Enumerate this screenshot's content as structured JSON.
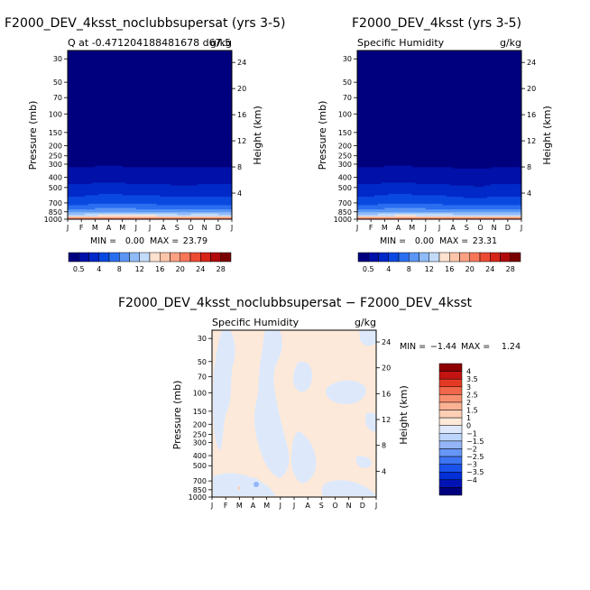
{
  "months": [
    "J",
    "F",
    "M",
    "A",
    "M",
    "J",
    "J",
    "A",
    "S",
    "O",
    "N",
    "D",
    "J"
  ],
  "pressure_ticks": [
    {
      "p": 30,
      "label": "30"
    },
    {
      "p": 50,
      "label": "50"
    },
    {
      "p": 70,
      "label": "70"
    },
    {
      "p": 100,
      "label": "100"
    },
    {
      "p": 150,
      "label": "150"
    },
    {
      "p": 200,
      "label": "200"
    },
    {
      "p": 250,
      "label": "250"
    },
    {
      "p": 300,
      "label": "300"
    },
    {
      "p": 400,
      "label": "400"
    },
    {
      "p": 500,
      "label": "500"
    },
    {
      "p": 700,
      "label": "700"
    },
    {
      "p": 850,
      "label": "850"
    },
    {
      "p": 1000,
      "label": "1000"
    }
  ],
  "height_ticks": [
    {
      "km": 4,
      "label": "4"
    },
    {
      "km": 8,
      "label": "8"
    },
    {
      "km": 12,
      "label": "12"
    },
    {
      "km": 16,
      "label": "16"
    },
    {
      "km": 20,
      "label": "20"
    },
    {
      "km": 24,
      "label": "24"
    }
  ],
  "axis": {
    "ylabel": "Pressure (mb)",
    "y2label": "Height (km)"
  },
  "abs_colors": [
    "#00007f",
    "#0011a8",
    "#0029c8",
    "#0a49e0",
    "#2a6ef0",
    "#5b96f5",
    "#8fbbf7",
    "#c3dbf9",
    "#fde2cf",
    "#fcc4a8",
    "#fba082",
    "#f7765a",
    "#ec4b33",
    "#d62416",
    "#b00a0a",
    "#7a0000"
  ],
  "abs_levels": [
    0.5,
    4,
    8,
    12,
    16,
    20,
    24,
    28
  ],
  "diff_colors": [
    "#00007f",
    "#0013b4",
    "#0030d6",
    "#1a52ec",
    "#3c75f4",
    "#6896f6",
    "#93b5f8",
    "#bcd5fa",
    "#dde9fb",
    "#fde9d9",
    "#fdd0b6",
    "#fbb194",
    "#f88f6f",
    "#f1674b",
    "#e43a24",
    "#c31412",
    "#8e0000"
  ],
  "diff_levels": [
    "4",
    "3.5",
    "3",
    "2.5",
    "2",
    "1.5",
    "1",
    "0",
    "-1",
    "-1.5",
    "-2",
    "-2.5",
    "-3",
    "-3.5",
    "-4"
  ],
  "chart_data": [
    {
      "type": "heatmap",
      "title": "F2000_DEV_4ksst_noclubbsupersat (yrs 3-5)",
      "subtitle_left": "Q at -0.471204188481678 d67.5",
      "subtitle_right": "g/kg",
      "xlabel": "",
      "ylabel": "Pressure (mb)",
      "y2label": "Height (km)",
      "ylim": [
        1000,
        25
      ],
      "y_scale": "log",
      "x": [
        "J",
        "F",
        "M",
        "A",
        "M",
        "J",
        "J",
        "A",
        "S",
        "O",
        "N",
        "D",
        "J"
      ],
      "min": "0.00",
      "max": "23.79",
      "min_label": "MIN =",
      "max_label": "MAX =",
      "field_pressure": [
        30,
        50,
        100,
        200,
        300,
        400,
        500,
        700,
        850,
        925,
        1000
      ],
      "field_gkg": [
        [
          0,
          0,
          0,
          0.02,
          0.3,
          1.1,
          2.4,
          5.2,
          9.0,
          13.5,
          23
        ],
        [
          0,
          0,
          0,
          0.02,
          0.3,
          1.1,
          2.4,
          5.2,
          9.0,
          13.5,
          23
        ],
        [
          0,
          0,
          0,
          0.02,
          0.35,
          1.2,
          2.6,
          5.5,
          9.3,
          13.8,
          23.2
        ],
        [
          0,
          0,
          0,
          0.02,
          0.4,
          1.3,
          2.8,
          5.8,
          9.6,
          14.0,
          23.5
        ],
        [
          0,
          0,
          0,
          0.02,
          0.35,
          1.2,
          2.6,
          5.6,
          9.5,
          14.0,
          23.5
        ],
        [
          0,
          0,
          0,
          0.02,
          0.3,
          1.1,
          2.5,
          5.4,
          9.4,
          13.9,
          23.6
        ],
        [
          0,
          0,
          0,
          0.02,
          0.3,
          1.1,
          2.5,
          5.4,
          9.4,
          13.9,
          23.7
        ],
        [
          0,
          0,
          0,
          0.02,
          0.3,
          1.1,
          2.4,
          5.2,
          9.2,
          13.8,
          23.7
        ],
        [
          0,
          0,
          0,
          0.02,
          0.3,
          1.05,
          2.3,
          5.0,
          9.0,
          13.6,
          23.6
        ],
        [
          0,
          0,
          0,
          0.02,
          0.3,
          1.05,
          2.3,
          5.0,
          9.0,
          13.6,
          23.6
        ],
        [
          0,
          0,
          0,
          0.02,
          0.3,
          1.1,
          2.4,
          5.2,
          9.1,
          13.7,
          23.5
        ],
        [
          0,
          0,
          0,
          0.02,
          0.3,
          1.1,
          2.4,
          5.2,
          9.0,
          13.6,
          23.3
        ],
        [
          0,
          0,
          0,
          0.02,
          0.3,
          1.1,
          2.4,
          5.2,
          9.0,
          13.5,
          23
        ]
      ]
    },
    {
      "type": "heatmap",
      "title": "F2000_DEV_4ksst (yrs 3-5)",
      "subtitle_left": "Specific Humidity",
      "subtitle_right": "g/kg",
      "xlabel": "",
      "ylabel": "Pressure (mb)",
      "y2label": "Height (km)",
      "ylim": [
        1000,
        25
      ],
      "y_scale": "log",
      "x": [
        "J",
        "F",
        "M",
        "A",
        "M",
        "J",
        "J",
        "A",
        "S",
        "O",
        "N",
        "D",
        "J"
      ],
      "min": "0.00",
      "max": "23.31",
      "min_label": "MIN =",
      "max_label": "MAX =",
      "field_pressure": [
        30,
        50,
        100,
        200,
        300,
        400,
        500,
        700,
        850,
        925,
        1000
      ],
      "field_gkg": [
        [
          0,
          0,
          0,
          0.02,
          0.3,
          1.1,
          2.4,
          5.2,
          9.0,
          13.4,
          22.8
        ],
        [
          0,
          0,
          0,
          0.02,
          0.3,
          1.1,
          2.4,
          5.2,
          9.0,
          13.4,
          22.8
        ],
        [
          0,
          0,
          0,
          0.02,
          0.35,
          1.2,
          2.6,
          5.5,
          9.3,
          13.7,
          23.0
        ],
        [
          0,
          0,
          0,
          0.02,
          0.4,
          1.3,
          2.8,
          5.8,
          9.6,
          13.9,
          23.2
        ],
        [
          0,
          0,
          0,
          0.02,
          0.35,
          1.2,
          2.6,
          5.6,
          9.5,
          13.9,
          23.2
        ],
        [
          0,
          0,
          0,
          0.02,
          0.3,
          1.1,
          2.5,
          5.4,
          9.4,
          13.8,
          23.3
        ],
        [
          0,
          0,
          0,
          0.02,
          0.3,
          1.1,
          2.5,
          5.4,
          9.4,
          13.8,
          23.3
        ],
        [
          0,
          0,
          0,
          0.02,
          0.28,
          1.05,
          2.3,
          5.1,
          9.1,
          13.6,
          23.2
        ],
        [
          0,
          0,
          0,
          0.02,
          0.25,
          1.0,
          2.2,
          4.9,
          8.9,
          13.4,
          23.1
        ],
        [
          0,
          0,
          0,
          0.02,
          0.22,
          0.95,
          2.1,
          4.8,
          8.8,
          13.3,
          23.0
        ],
        [
          0,
          0,
          0,
          0.02,
          0.3,
          1.1,
          2.4,
          5.2,
          9.0,
          13.5,
          23.0
        ],
        [
          0,
          0,
          0,
          0.02,
          0.3,
          1.1,
          2.4,
          5.2,
          9.0,
          13.4,
          22.9
        ],
        [
          0,
          0,
          0,
          0.02,
          0.3,
          1.1,
          2.4,
          5.2,
          9.0,
          13.4,
          22.8
        ]
      ]
    },
    {
      "type": "heatmap",
      "title": "F2000_DEV_4ksst_noclubbsupersat − F2000_DEV_4ksst",
      "subtitle_left": "Specific Humidity",
      "subtitle_right": "g/kg",
      "xlabel": "",
      "ylabel": "Pressure (mb)",
      "y2label": "Height (km)",
      "ylim": [
        1000,
        25
      ],
      "y_scale": "log",
      "x": [
        "J",
        "F",
        "M",
        "A",
        "M",
        "J",
        "J",
        "A",
        "S",
        "O",
        "N",
        "D",
        "J"
      ],
      "min": "−1.44",
      "max": "1.24",
      "min_label": "MIN =",
      "max_label": "MAX =",
      "colorbar_labels": [
        "4",
        "3.5",
        "3",
        "2.5",
        "2",
        "1.5",
        "1",
        "0",
        "−1",
        "−1.5",
        "−2",
        "−2.5",
        "−3",
        "−3.5",
        "−4"
      ],
      "background_class": "0 to 1",
      "patch_class": "−1 to 0"
    }
  ]
}
